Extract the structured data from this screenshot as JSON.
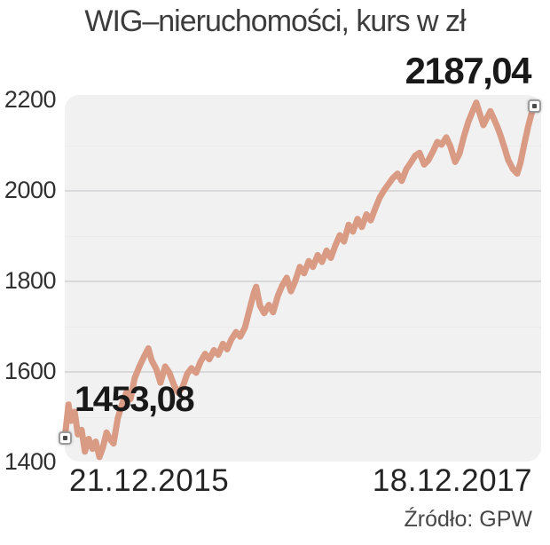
{
  "title": "WIG–nieruchomości, kurs w zł",
  "source": "Źródło: GPW",
  "labels": {
    "start_value": "1453,08",
    "end_value": "2187,04",
    "start_date": "21.12.2015",
    "end_date": "18.12.2017"
  },
  "colors": {
    "line": "#d99b84",
    "plot_bg": "#f1f1f2",
    "gridline_major": "#d9d9db",
    "gridline_minor": "#ebebed",
    "title_text": "#3c3c3c",
    "tick_text": "#303030",
    "date_text": "#242424",
    "value_label_text": "#191919",
    "source_text": "#474747",
    "marker_border": "#9a9a9a",
    "marker_fill": "#ffffff",
    "marker_dot": "#4a4a4a"
  },
  "chart_data": {
    "type": "line",
    "title": "WIG–nieruchomości, kurs w zł",
    "ylabel": "kurs w zł",
    "x_range": [
      "21.12.2015",
      "18.12.2017"
    ],
    "ylim": [
      1400,
      2200
    ],
    "yticks": [
      2200,
      2000,
      1800,
      1600,
      1400
    ],
    "gridlines_major": [
      2000,
      1800,
      1600
    ],
    "gridlines_minor": [
      2100,
      1900,
      1700,
      1500
    ],
    "grid": true,
    "legend": false,
    "start_value": 1453.08,
    "end_value": 2187.04,
    "source": "GPW",
    "series": [
      {
        "name": "WIG-nieruchomości",
        "points": [
          [
            0.0,
            1453.08
          ],
          [
            0.008,
            1528
          ],
          [
            0.013,
            1492
          ],
          [
            0.021,
            1512
          ],
          [
            0.028,
            1462
          ],
          [
            0.036,
            1472
          ],
          [
            0.043,
            1424
          ],
          [
            0.051,
            1452
          ],
          [
            0.059,
            1430
          ],
          [
            0.066,
            1446
          ],
          [
            0.074,
            1412
          ],
          [
            0.081,
            1432
          ],
          [
            0.089,
            1466
          ],
          [
            0.096,
            1452
          ],
          [
            0.104,
            1442
          ],
          [
            0.113,
            1498
          ],
          [
            0.123,
            1532
          ],
          [
            0.132,
            1556
          ],
          [
            0.14,
            1540
          ],
          [
            0.149,
            1586
          ],
          [
            0.159,
            1612
          ],
          [
            0.168,
            1632
          ],
          [
            0.178,
            1652
          ],
          [
            0.185,
            1626
          ],
          [
            0.195,
            1606
          ],
          [
            0.204,
            1576
          ],
          [
            0.214,
            1612
          ],
          [
            0.223,
            1598
          ],
          [
            0.233,
            1570
          ],
          [
            0.242,
            1554
          ],
          [
            0.251,
            1566
          ],
          [
            0.261,
            1596
          ],
          [
            0.27,
            1608
          ],
          [
            0.28,
            1598
          ],
          [
            0.289,
            1622
          ],
          [
            0.299,
            1640
          ],
          [
            0.308,
            1628
          ],
          [
            0.318,
            1648
          ],
          [
            0.327,
            1638
          ],
          [
            0.337,
            1662
          ],
          [
            0.346,
            1650
          ],
          [
            0.355,
            1672
          ],
          [
            0.365,
            1688
          ],
          [
            0.374,
            1678
          ],
          [
            0.384,
            1698
          ],
          [
            0.393,
            1735
          ],
          [
            0.403,
            1775
          ],
          [
            0.408,
            1788
          ],
          [
            0.416,
            1746
          ],
          [
            0.425,
            1730
          ],
          [
            0.435,
            1748
          ],
          [
            0.444,
            1732
          ],
          [
            0.454,
            1768
          ],
          [
            0.463,
            1790
          ],
          [
            0.473,
            1808
          ],
          [
            0.482,
            1778
          ],
          [
            0.491,
            1800
          ],
          [
            0.501,
            1832
          ],
          [
            0.51,
            1818
          ],
          [
            0.52,
            1845
          ],
          [
            0.529,
            1832
          ],
          [
            0.539,
            1858
          ],
          [
            0.548,
            1843
          ],
          [
            0.558,
            1868
          ],
          [
            0.567,
            1852
          ],
          [
            0.577,
            1880
          ],
          [
            0.586,
            1902
          ],
          [
            0.595,
            1888
          ],
          [
            0.605,
            1925
          ],
          [
            0.614,
            1910
          ],
          [
            0.624,
            1938
          ],
          [
            0.633,
            1920
          ],
          [
            0.643,
            1948
          ],
          [
            0.652,
            1935
          ],
          [
            0.662,
            1962
          ],
          [
            0.671,
            1985
          ],
          [
            0.681,
            2002
          ],
          [
            0.69,
            2015
          ],
          [
            0.699,
            2028
          ],
          [
            0.709,
            2038
          ],
          [
            0.718,
            2022
          ],
          [
            0.728,
            2048
          ],
          [
            0.737,
            2062
          ],
          [
            0.747,
            2078
          ],
          [
            0.756,
            2084
          ],
          [
            0.766,
            2058
          ],
          [
            0.775,
            2068
          ],
          [
            0.785,
            2088
          ],
          [
            0.794,
            2108
          ],
          [
            0.803,
            2102
          ],
          [
            0.813,
            2118
          ],
          [
            0.822,
            2098
          ],
          [
            0.832,
            2064
          ],
          [
            0.841,
            2082
          ],
          [
            0.851,
            2122
          ],
          [
            0.86,
            2152
          ],
          [
            0.87,
            2178
          ],
          [
            0.877,
            2195
          ],
          [
            0.885,
            2168
          ],
          [
            0.892,
            2145
          ],
          [
            0.9,
            2162
          ],
          [
            0.907,
            2176
          ],
          [
            0.915,
            2158
          ],
          [
            0.923,
            2138
          ],
          [
            0.93,
            2118
          ],
          [
            0.938,
            2092
          ],
          [
            0.945,
            2068
          ],
          [
            0.955,
            2048
          ],
          [
            0.964,
            2038
          ],
          [
            0.971,
            2062
          ],
          [
            0.979,
            2102
          ],
          [
            0.987,
            2140
          ],
          [
            0.994,
            2168
          ],
          [
            1.0,
            2187.04
          ]
        ]
      }
    ]
  }
}
